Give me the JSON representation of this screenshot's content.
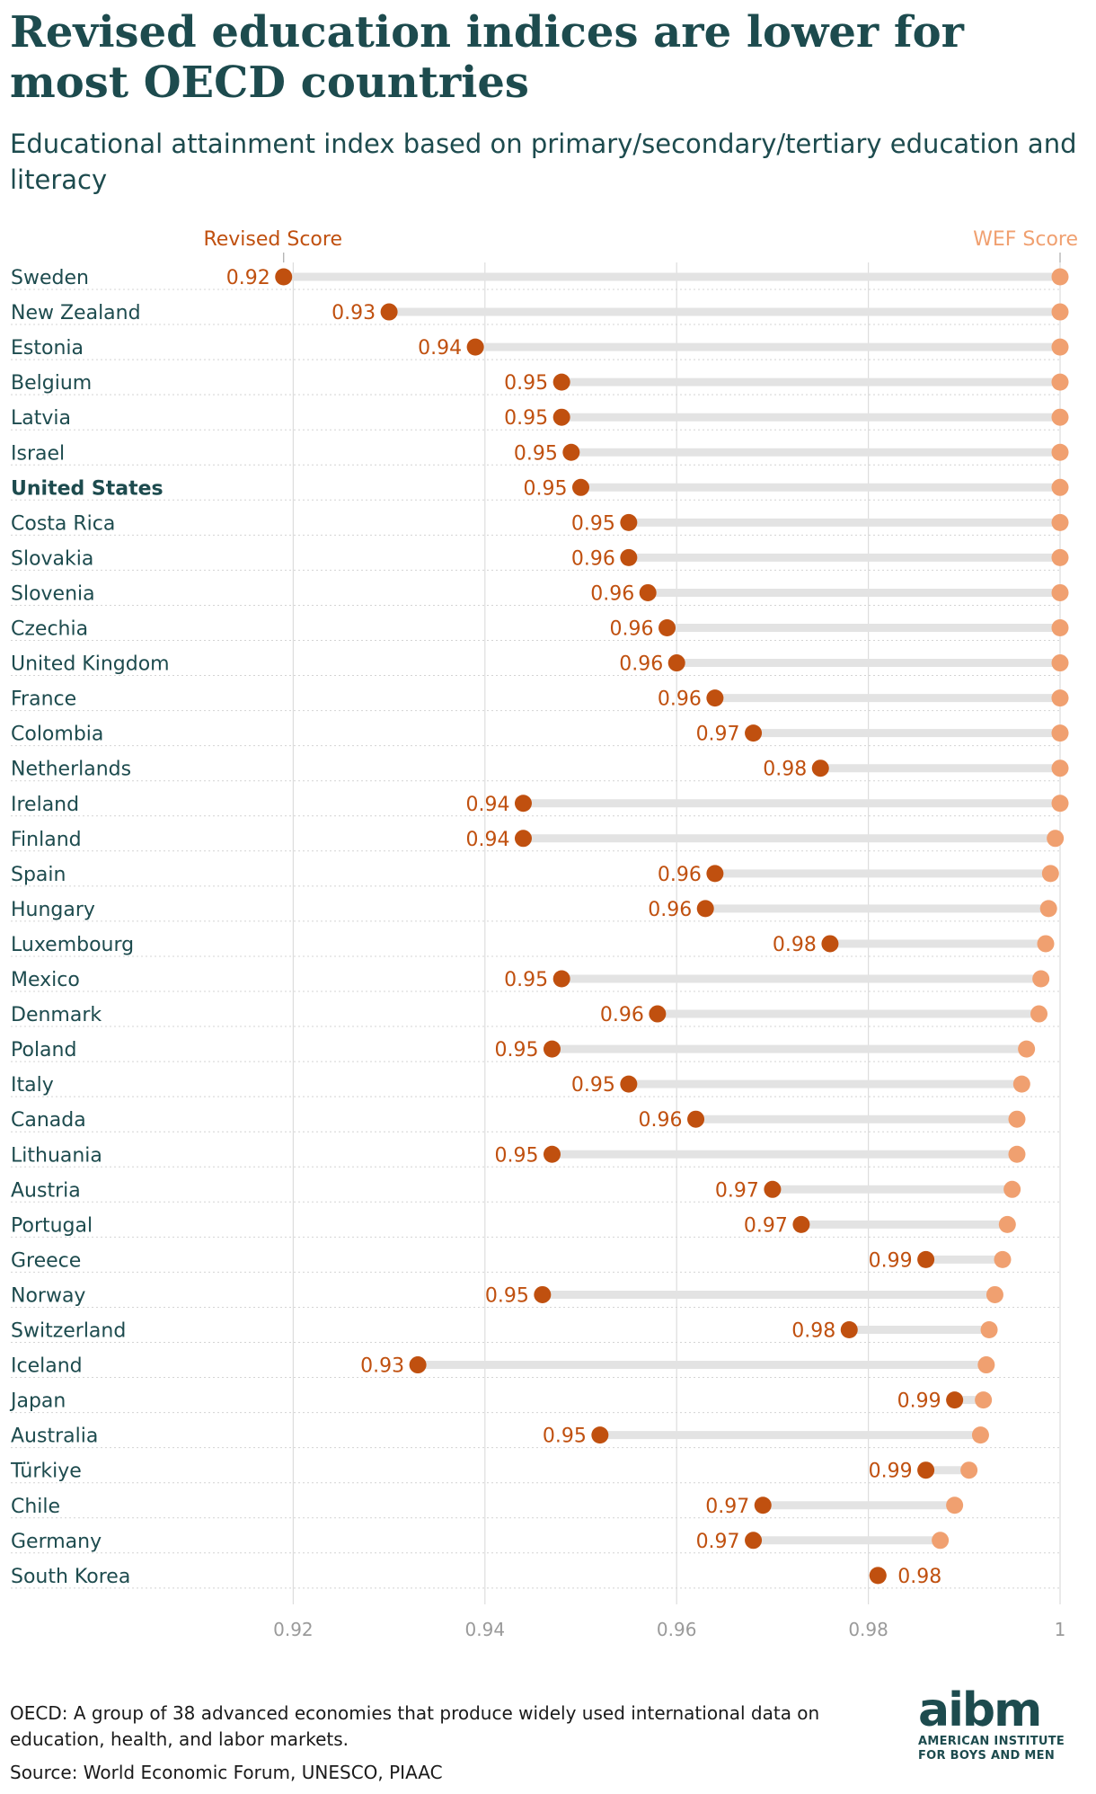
{
  "header": {
    "title": "Revised education indices are lower for most OECD countries",
    "subtitle": "Educational attainment index based on primary/secondary/tertiary education and literacy"
  },
  "footer": {
    "note": "OECD: A group of 38 advanced economies that produce widely used international data on education, health, and labor markets.",
    "source": "Source: World Economic Forum, UNESCO, PIAAC"
  },
  "logo": {
    "mark": "aibm",
    "line1": "AMERICAN INSTITUTE",
    "line2": "FOR BOYS AND MEN"
  },
  "colors": {
    "revised": "#c0500f",
    "wef": "#f0a070",
    "bar": "#e3e3e3",
    "grid": "#dddddd",
    "text": "#1d4b4e",
    "label": "#c0500f"
  },
  "chart_data": {
    "type": "dot-plot",
    "series": [
      {
        "name": "Revised Score",
        "key": "revised"
      },
      {
        "name": "WEF Score",
        "key": "wef"
      }
    ],
    "xlim": [
      0.9,
      1.0
    ],
    "xticks": [
      0.92,
      0.94,
      0.96,
      0.98,
      1
    ],
    "xtick_labels": [
      "0.92",
      "0.94",
      "0.96",
      "0.98",
      "1"
    ],
    "highlight": "United States",
    "grid": true,
    "categories": [
      "Sweden",
      "New Zealand",
      "Estonia",
      "Belgium",
      "Latvia",
      "Israel",
      "United States",
      "Costa Rica",
      "Slovakia",
      "Slovenia",
      "Czechia",
      "United Kingdom",
      "France",
      "Colombia",
      "Netherlands",
      "Ireland",
      "Finland",
      "Spain",
      "Hungary",
      "Luxembourg",
      "Mexico",
      "Denmark",
      "Poland",
      "Italy",
      "Canada",
      "Lithuania",
      "Austria",
      "Portugal",
      "Greece",
      "Norway",
      "Switzerland",
      "Iceland",
      "Japan",
      "Australia",
      "Türkiye",
      "Chile",
      "Germany",
      "South Korea"
    ],
    "revised": [
      0.919,
      0.93,
      0.939,
      0.948,
      0.948,
      0.949,
      0.95,
      0.955,
      0.955,
      0.957,
      0.959,
      0.96,
      0.964,
      0.968,
      0.975,
      0.944,
      0.944,
      0.964,
      0.963,
      0.976,
      0.948,
      0.958,
      0.947,
      0.955,
      0.962,
      0.947,
      0.97,
      0.973,
      0.986,
      0.946,
      0.978,
      0.933,
      0.989,
      0.952,
      0.986,
      0.969,
      0.968,
      0.981
    ],
    "revised_labels": [
      "0.92",
      "0.93",
      "0.94",
      "0.95",
      "0.95",
      "0.95",
      "0.95",
      "0.95",
      "0.96",
      "0.96",
      "0.96",
      "0.96",
      "0.96",
      "0.97",
      "0.98",
      "0.94",
      "0.94",
      "0.96",
      "0.96",
      "0.98",
      "0.95",
      "0.96",
      "0.95",
      "0.95",
      "0.96",
      "0.95",
      "0.97",
      "0.97",
      "0.99",
      "0.95",
      "0.98",
      "0.93",
      "0.99",
      "0.95",
      "0.99",
      "0.97",
      "0.97",
      "0.98"
    ],
    "wef": [
      1.0,
      1.0,
      1.0,
      1.0,
      1.0,
      1.0,
      1.0,
      1.0,
      1.0,
      1.0,
      1.0,
      1.0,
      1.0,
      1.0,
      1.0,
      1.0,
      0.9995,
      0.999,
      0.9988,
      0.9985,
      0.998,
      0.9978,
      0.9965,
      0.996,
      0.9955,
      0.9955,
      0.995,
      0.9945,
      0.994,
      0.9932,
      0.9926,
      0.9923,
      0.992,
      0.9917,
      0.9905,
      0.989,
      0.9875,
      0.981
    ]
  }
}
